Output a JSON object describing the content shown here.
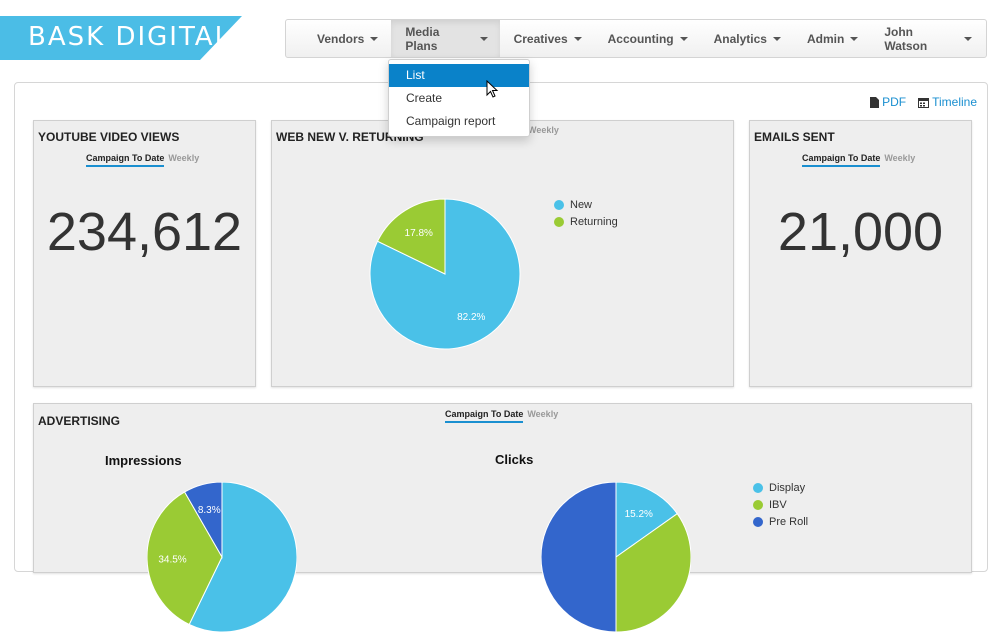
{
  "brand": {
    "logo_text": "BASK DIGITAL",
    "color": "#4bbde6"
  },
  "nav": {
    "items": [
      {
        "label": "Vendors"
      },
      {
        "label": "Media Plans"
      },
      {
        "label": "Creatives"
      },
      {
        "label": "Accounting"
      },
      {
        "label": "Analytics"
      },
      {
        "label": "Admin"
      },
      {
        "label": "John Watson"
      }
    ],
    "active": "Media Plans"
  },
  "dropdown": {
    "items": [
      {
        "label": "List"
      },
      {
        "label": "Create"
      },
      {
        "label": "Campaign report"
      }
    ],
    "highlighted": "List"
  },
  "export": {
    "pdf_label": "PDF",
    "timeline_label": "Timeline"
  },
  "panels": {
    "youtube": {
      "title": "YOUTUBE VIDEO VIEWS",
      "tab_active": "Campaign To Date",
      "tab_other": "Weekly",
      "value": "234,612"
    },
    "web": {
      "title": "WEB NEW V. RETURNING",
      "tab_other": "Weekly"
    },
    "emails": {
      "title": "EMAILS SENT",
      "tab_active": "Campaign To Date",
      "tab_other": "Weekly",
      "value": "21,000"
    },
    "advertising": {
      "title": "ADVERTISING",
      "tab_active": "Campaign To Date",
      "tab_other": "Weekly"
    }
  },
  "colors": {
    "blue": "#4ac1e8",
    "green": "#9acb34",
    "dark_blue": "#3366cc",
    "accent": "#0a82c9"
  },
  "chart_data": [
    {
      "type": "pie",
      "name": "web_new_vs_returning",
      "categories": [
        "New",
        "Returning"
      ],
      "values": [
        82.2,
        17.8
      ],
      "labels": [
        "82.2%",
        "17.8%"
      ],
      "legend": "right"
    },
    {
      "type": "pie",
      "title": "Impressions",
      "categories": [
        "Display",
        "IBV",
        "Pre Roll"
      ],
      "values": [
        57.2,
        34.5,
        8.3
      ],
      "labels": [
        "",
        "34.5%",
        "8.3%"
      ]
    },
    {
      "type": "pie",
      "title": "Clicks",
      "categories": [
        "Display",
        "IBV",
        "Pre Roll"
      ],
      "values": [
        15.2,
        34.8,
        50.0
      ],
      "labels": [
        "15.2%",
        "",
        ""
      ],
      "legend": "right"
    }
  ]
}
